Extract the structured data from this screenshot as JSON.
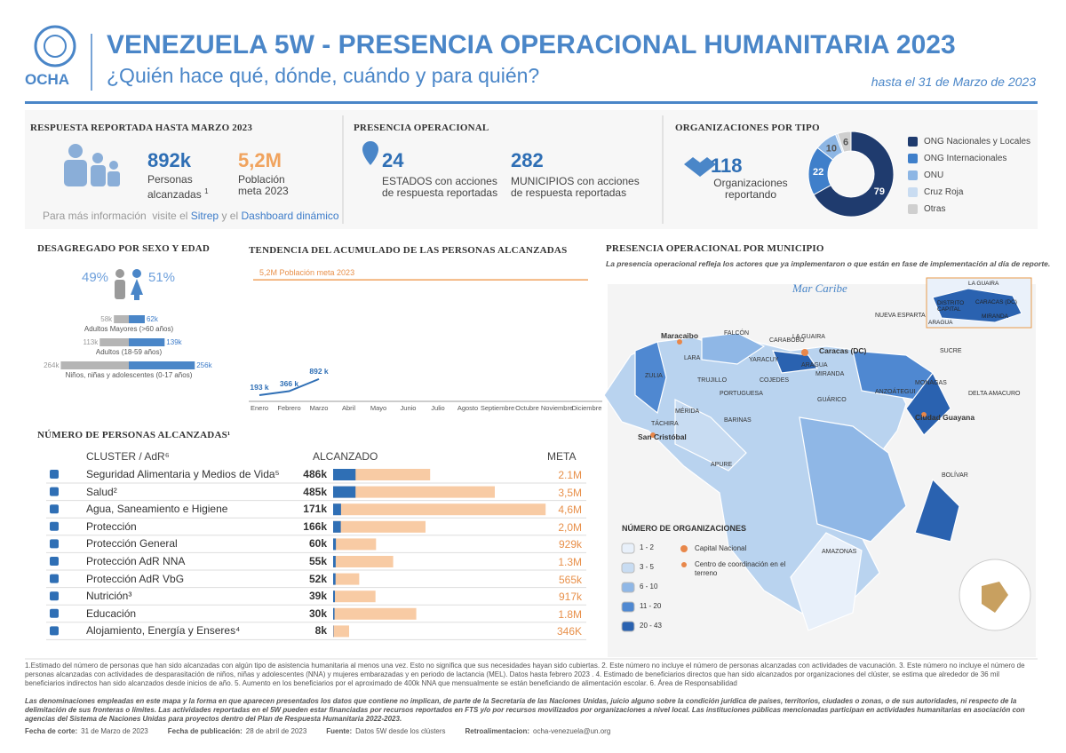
{
  "header": {
    "logo": "OCHA",
    "title": "VENEZUELA 5W - PRESENCIA OPERACIONAL HUMANITARIA 2023",
    "subtitle": "¿Quién hace qué, dónde, cuándo y para quién?",
    "date": "hasta el 31 de Marzo de 2023"
  },
  "respuesta": {
    "heading": "RESPUESTA REPORTADA HASTA MARZO 2023",
    "reached": "892k",
    "reached_label": "Personas alcanzadas",
    "reached_note": "1",
    "target": "5,2M",
    "target_label": "Población meta 2023",
    "info": "Para más información",
    "info_visit": "visite el",
    "sitrep": "Sitrep",
    "and": "y el",
    "dashboard": "Dashboard dinámico"
  },
  "presencia": {
    "heading": "PRESENCIA OPERACIONAL",
    "states": "24",
    "states_label": "ESTADOS con acciones de respuesta reportadas",
    "municipios": "282",
    "municipios_label": "MUNICIPIOS con acciones de respuesta reportadas"
  },
  "org": {
    "heading": "ORGANIZACIONES POR TIPO",
    "total": "118",
    "total_label": "Organizaciones reportando",
    "donut": {
      "categories": [
        "ONG Nacionales y Locales",
        "ONG Internacionales",
        "ONU",
        "Cruz Roja",
        "Otras"
      ],
      "values": [
        79,
        22,
        10,
        1,
        6
      ],
      "colors": [
        "#1f3b6e",
        "#3f7fca",
        "#8db6e4",
        "#c9dcf1",
        "#cfcfcf"
      ]
    }
  },
  "sexo": {
    "heading": "DESAGREGADO POR SEXO Y EDAD",
    "values": [
      49,
      51
    ],
    "value_labels": [
      "49%",
      "51%"
    ],
    "colors": [
      "#b5b5b5",
      "#4a86c8"
    ],
    "groups": [
      {
        "name": "Adultos Mayores (>60 años)",
        "values": [
          58,
          62
        ],
        "value_labels": [
          "58k",
          "62k"
        ]
      },
      {
        "name": "Adultos (18-59 años)",
        "values": [
          113,
          139
        ],
        "value_labels": [
          "113k",
          "139k"
        ]
      },
      {
        "name": "Niños, niñas y adolescentes  (0-17 años)",
        "values": [
          264,
          256
        ],
        "value_labels": [
          "264k",
          "256k"
        ]
      }
    ]
  },
  "tendencia": {
    "heading": "TENDENCIA DEL ACUMULADO DE LAS PERSONAS ALCANZADAS",
    "target": 5200,
    "target_label": "5,2M Población meta 2023",
    "ylim": [
      0,
      5400
    ],
    "categories": [
      "Enero",
      "Febrero",
      "Marzo",
      "Abril",
      "Mayo",
      "Junio",
      "Julio",
      "Agosto",
      "Septiembre",
      "Octubre",
      "Noviembre",
      "Diciembre"
    ],
    "values": [
      193,
      366,
      892,
      null,
      null,
      null,
      null,
      null,
      null,
      null,
      null,
      null
    ],
    "value_labels": [
      "193 k",
      "366 k",
      "892 k",
      null,
      null,
      null,
      null,
      null,
      null,
      null,
      null,
      null
    ]
  },
  "clusters": {
    "heading": "NÚMERO DE PERSONAS ALCANZADAS¹",
    "col_cluster": "CLUSTER / AdR⁶",
    "col_reached": "ALCANZADO",
    "col_target": "META",
    "names": [
      "Seguridad Alimentaria y Medios de Vida⁵",
      "Salud²",
      "Agua, Saneamiento e Higiene",
      "Protección",
      "Protección General",
      "Protección AdR NNA",
      "Protección AdR VbG",
      "Nutrición³",
      "Educación",
      "Alojamiento, Energía y Enseres⁴"
    ],
    "reached": [
      486,
      485,
      171,
      166,
      60,
      55,
      52,
      39,
      30,
      8
    ],
    "reached_labels": [
      "486k",
      "485k",
      "171k",
      "166k",
      "60k",
      "55k",
      "52k",
      "39k",
      "30k",
      "8k"
    ],
    "target": [
      2100,
      3500,
      4600,
      2000,
      929,
      1300,
      565,
      917,
      1800,
      346
    ],
    "target_labels": [
      "2.1M",
      "3,5M",
      "4,6M",
      "2,0M",
      "929k",
      "1.3M",
      "565k",
      "917k",
      "1.8M",
      "346K"
    ]
  },
  "mapa": {
    "heading": "PRESENCIA OPERACIONAL POR MUNICIPIO",
    "subtitle": "La presencia operacional refleja los actores que ya implementaron o que están en fase de implementación al día de reporte.",
    "sea": "Mar Caribe",
    "labels": [
      "FALCÓN",
      "ZULIA",
      "LARA",
      "YARACUY",
      "CARABOBO",
      "LA GUAIRA",
      "Caracas (DC)",
      "ARAGUA",
      "MIRANDA",
      "NUEVA ESPARTA",
      "SUCRE",
      "MONAGAS",
      "ANZOÁTEGUI",
      "DELTA AMACURO",
      "TRUJILLO",
      "PORTUGUESA",
      "COJEDES",
      "GUÁRICO",
      "MÉRIDA",
      "BARINAS",
      "TÁCHIRA",
      "APURE",
      "BOLÍVAR",
      "AMAZONAS",
      "Maracaibo",
      "San Cristóbal",
      "Ciudad Guayana"
    ],
    "inset": [
      "LA GUAIRA",
      "DISTRITO CAPITAL",
      "CARACAS (DC)",
      "MIRANDA",
      "ARAGUA"
    ],
    "legend_title": "NÚMERO DE ORGANIZACIONES",
    "bins": [
      "1 - 2",
      "3 - 5",
      "6 - 10",
      "11 - 20",
      "20 - 43"
    ],
    "bin_colors": [
      "#e8f0fa",
      "#c8dcf2",
      "#8fb7e6",
      "#4f88d1",
      "#2a62b0"
    ],
    "capital": "Capital Nacional",
    "centro": "Centro de coordinación en el terreno"
  },
  "notes": "1.Estimado del número de personas que han sido alcanzadas con algún tipo de asistencia humanitaria al menos una vez. Esto no significa que sus necesidades hayan sido cubiertas. 2. Este número no incluye el número de personas alcanzadas con actividades de vacunación. 3. Este número no incluye el número de personas alcanzadas con actividades de desparasitación de niños, niñas y adolescentes (NNA) y mujeres embarazadas y en periodo de lactancia (MEL). Datos hasta febrero 2023 . 4. Estimado de beneficiarios directos que han sido alcanzados por organizaciones del clúster, se estima que alrededor de 36 mil beneficiarios indirectos han sido alcanzados desde inicios de año. 5. Aumento en los beneficiarios por el aproximado de 400k NNA que mensualmente se están beneficiando de alimentación escolar. 6. Área de Responsabilidad",
  "footer": {
    "disclaimer": "Las denominaciones empleadas en este mapa y la forma en que aparecen presentados los datos que contiene no implican, de parte de la Secretaría de las Naciones Unidas, juicio alguno sobre la condición jurídica de países, territorios, ciudades o zonas, o de sus autoridades, ni respecto de la delimitación de sus fronteras o límites. Las actividades reportadas en el 5W pueden estar financiadas por recursos reportados en FTS y/o por recursos movilizados por organizaciones a nivel local. Las instituciones públicas mencionadas participan en actividades humanitarias en asociación con agencias del Sistema de Naciones Unidas para proyectos dentro del Plan de Respuesta Humanitaria 2022-2023.",
    "items": [
      {
        "label": "Fecha de corte:",
        "value": "31 de Marzo de 2023"
      },
      {
        "label": "Fecha de publicación:",
        "value": "28 de abril de 2023"
      },
      {
        "label": "Fuente:",
        "value": "Datos 5W desde los clústers"
      },
      {
        "label": "Retroalimentacion:",
        "value": "ocha-venezuela@un.org"
      }
    ]
  }
}
